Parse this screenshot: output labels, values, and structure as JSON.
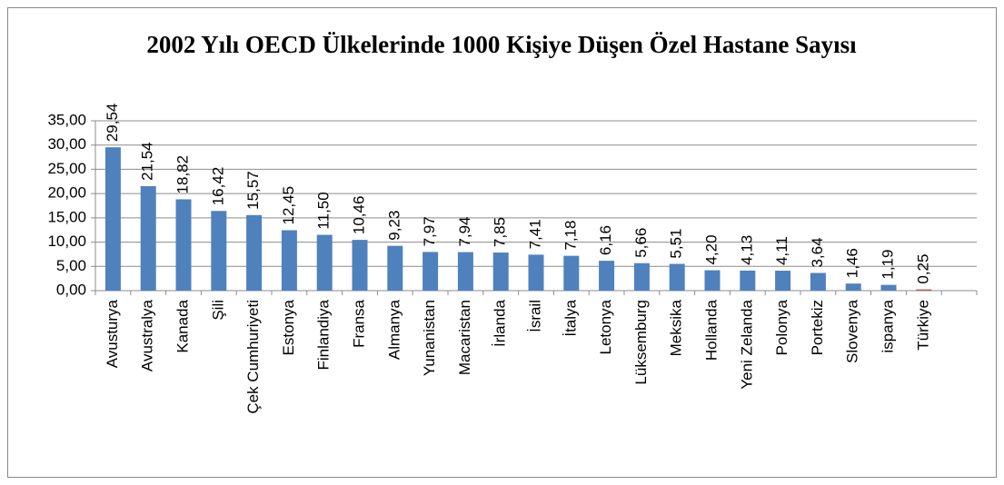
{
  "chart_data": {
    "type": "bar",
    "title": "2002 Yılı OECD Ülkelerinde 1000 Kişiye Düşen Özel Hastane Sayısı",
    "categories": [
      "Avusturya",
      "Avustralya",
      "Kanada",
      "Şili",
      "Çek Cumhuriyeti",
      "Estonya",
      "Finlandiya",
      "Fransa",
      "Almanya",
      "Yunanistan",
      "Macaristan",
      "İrlanda",
      "İsrail",
      "İtalya",
      "Letonya",
      "Lüksemburg",
      "Meksika",
      "Hollanda",
      "Yeni Zelanda",
      "Polonya",
      "Portekiz",
      "Slovenya",
      "ispanya",
      "Türkiye",
      null
    ],
    "values": [
      29.54,
      21.54,
      18.82,
      16.42,
      15.57,
      12.45,
      11.5,
      10.46,
      9.23,
      7.97,
      7.94,
      7.85,
      7.41,
      7.18,
      6.16,
      5.66,
      5.51,
      4.2,
      4.13,
      4.11,
      3.64,
      1.46,
      1.19,
      0.25,
      null
    ],
    "value_labels": [
      "29,54",
      "21,54",
      "18,82",
      "16,42",
      "15,57",
      "12,45",
      "11,50",
      "10,46",
      "9,23",
      "7,97",
      "7,94",
      "7,85",
      "7,41",
      "7,18",
      "6,16",
      "5,66",
      "5,51",
      "4,20",
      "4,13",
      "4,11",
      "3,64",
      "1,46",
      "1,19",
      "0,25",
      null
    ],
    "color": "#4f81bd",
    "colors": [
      "#4f81bd",
      "#4f81bd",
      "#4f81bd",
      "#4f81bd",
      "#4f81bd",
      "#4f81bd",
      "#4f81bd",
      "#4f81bd",
      "#4f81bd",
      "#4f81bd",
      "#4f81bd",
      "#4f81bd",
      "#4f81bd",
      "#4f81bd",
      "#4f81bd",
      "#4f81bd",
      "#4f81bd",
      "#4f81bd",
      "#4f81bd",
      "#4f81bd",
      "#4f81bd",
      "#4f81bd",
      "#4f81bd",
      "#c0504d",
      null
    ],
    "ylim": [
      0,
      35
    ],
    "yticks": [
      {
        "value": 0,
        "label": "0,00"
      },
      {
        "value": 5,
        "label": "5,00"
      },
      {
        "value": 10,
        "label": "10,00"
      },
      {
        "value": 15,
        "label": "15,00"
      },
      {
        "value": 20,
        "label": "20,00"
      },
      {
        "value": 25,
        "label": "25,00"
      },
      {
        "value": 30,
        "label": "30,00"
      },
      {
        "value": 35,
        "label": "35,00"
      }
    ],
    "grid": true
  }
}
